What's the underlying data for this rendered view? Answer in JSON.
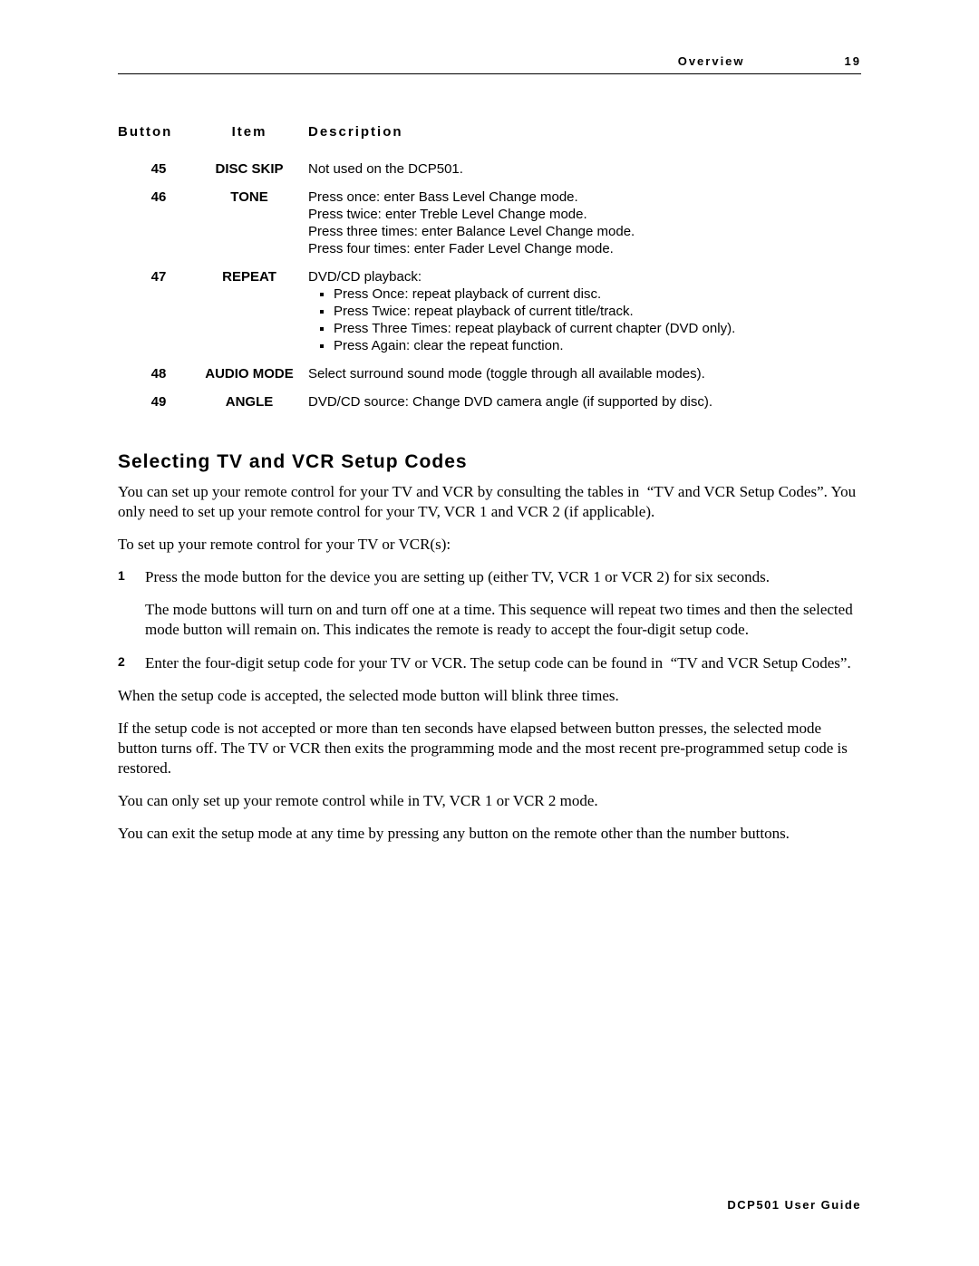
{
  "header": {
    "title": "Overview",
    "page": "19"
  },
  "table": {
    "columns": {
      "button": "Button",
      "item": "Item",
      "description": "Description"
    },
    "rows": [
      {
        "button": "45",
        "item": "DISC SKIP",
        "desc_lines": [
          "Not used on the DCP501."
        ],
        "bullets": []
      },
      {
        "button": "46",
        "item": "TONE",
        "desc_lines": [
          "Press once: enter Bass Level Change mode.",
          "Press twice: enter Treble Level Change mode.",
          "Press three times: enter Balance Level Change mode.",
          "Press four times: enter Fader Level Change mode."
        ],
        "bullets": []
      },
      {
        "button": "47",
        "item": "REPEAT",
        "desc_lines": [
          "DVD/CD playback:"
        ],
        "bullets": [
          "Press Once: repeat playback of current disc.",
          "Press Twice: repeat playback of current title/track.",
          "Press Three Times: repeat playback of current chapter (DVD only).",
          "Press Again: clear the repeat function."
        ]
      },
      {
        "button": "48",
        "item": "AUDIO MODE",
        "desc_lines": [
          "Select surround sound mode (toggle through all available modes)."
        ],
        "bullets": []
      },
      {
        "button": "49",
        "item": "ANGLE",
        "desc_lines": [
          "DVD/CD source: Change DVD camera angle (if supported by disc)."
        ],
        "bullets": []
      }
    ]
  },
  "section": {
    "title": "Selecting TV and VCR Setup Codes",
    "intro1": "You can set up your remote control for your TV and VCR by consulting the tables in  “TV and VCR Setup Codes”. You only need to set up your remote control for your TV, VCR 1 and VCR 2 (if applicable).",
    "intro2": "To set up your remote control for your TV or VCR(s):",
    "steps": [
      {
        "num": "1",
        "paras": [
          "Press the mode button for the device you are setting up (either TV, VCR 1 or VCR 2) for six seconds.",
          "The mode buttons will turn on and turn off one at a time. This sequence will repeat two times and then the selected mode button will remain on. This indicates the remote is ready to accept the four-digit setup code."
        ]
      },
      {
        "num": "2",
        "paras": [
          "Enter the four-digit setup code for your TV or VCR. The setup code can be found in  “TV and VCR Setup Codes”."
        ]
      }
    ],
    "after1": "When the setup code is accepted, the selected mode button will blink three times.",
    "after2": "If the setup code is not accepted or more than ten seconds have elapsed between button presses, the selected mode button turns off. The TV or VCR then exits the programming mode and the most recent pre-programmed setup code is restored.",
    "after3": "You can only set up your remote control while in TV, VCR 1 or VCR 2 mode.",
    "after4": "You can exit the setup mode at any time by pressing any button on the remote other than the number buttons."
  },
  "footer": "DCP501 User Guide"
}
